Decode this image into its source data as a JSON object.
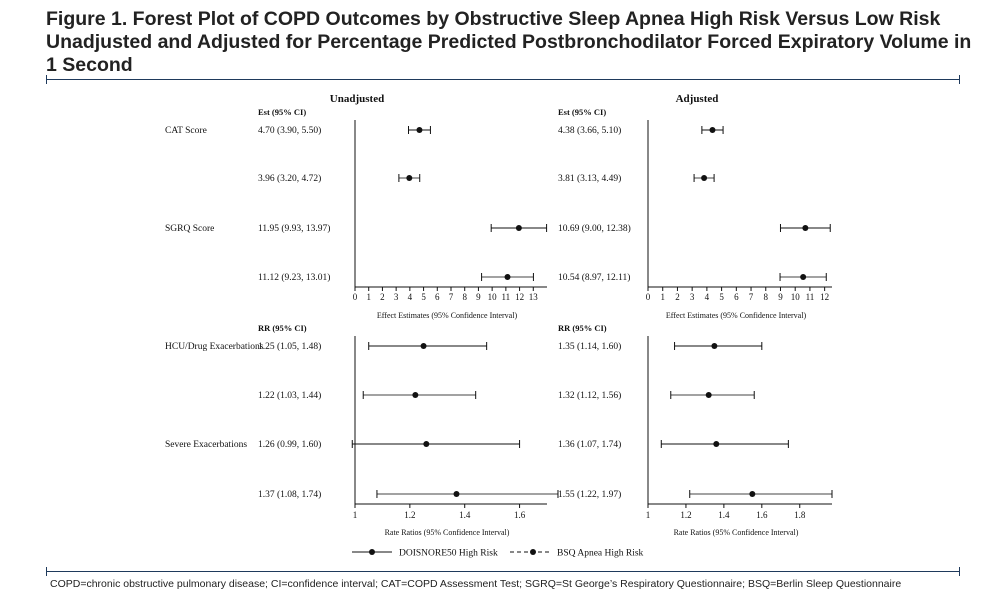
{
  "figure": {
    "title": "Figure 1. Forest Plot of COPD Outcomes by Obstructive Sleep Apnea High Risk Versus Low Risk Unadjusted and Adjusted for Percentage Predicted Postbronchodilator Forced Expiratory Volume in 1 Second",
    "footnote": "COPD=chronic obstructive pulmonary disease; CI=confidence interval; CAT=COPD Assessment Test; SGRQ=St George’s Respiratory Questionnaire; BSQ=Berlin Sleep Questionnaire"
  },
  "chart_data": {
    "type": "forest",
    "columns": [
      {
        "title": "Unadjusted"
      },
      {
        "title": "Adjusted"
      }
    ],
    "legend": [
      {
        "name": "DOISNORE50 High Risk",
        "line": "solid",
        "color": "#111111"
      },
      {
        "name": "BSQ Apnea High Risk",
        "line": "dashed",
        "color": "#111111"
      }
    ],
    "panels": [
      {
        "header": "Est (95% CI)",
        "xlabel": "Effect Estimates (95% Confidence Interval)",
        "outcomes": [
          {
            "name": "CAT Score",
            "rows": [
              {
                "unadjusted": {
                  "label": "4.70 (3.90, 5.50)",
                  "est": 4.7,
                  "lo": 3.9,
                  "hi": 5.5
                },
                "adjusted": {
                  "label": "4.38 (3.66, 5.10)",
                  "est": 4.38,
                  "lo": 3.66,
                  "hi": 5.1
                }
              },
              {
                "unadjusted": {
                  "label": "3.96 (3.20, 4.72)",
                  "est": 3.96,
                  "lo": 3.2,
                  "hi": 4.72
                },
                "adjusted": {
                  "label": "3.81 (3.13, 4.49)",
                  "est": 3.81,
                  "lo": 3.13,
                  "hi": 4.49
                }
              }
            ]
          },
          {
            "name": "SGRQ Score",
            "rows": [
              {
                "unadjusted": {
                  "label": "11.95 (9.93, 13.97)",
                  "est": 11.95,
                  "lo": 9.93,
                  "hi": 13.97
                },
                "adjusted": {
                  "label": "10.69 (9.00, 12.38)",
                  "est": 10.69,
                  "lo": 9.0,
                  "hi": 12.38
                }
              },
              {
                "unadjusted": {
                  "label": "11.12 (9.23, 13.01)",
                  "est": 11.12,
                  "lo": 9.23,
                  "hi": 13.01
                },
                "adjusted": {
                  "label": "10.54 (8.97, 12.11)",
                  "est": 10.54,
                  "lo": 8.97,
                  "hi": 12.11
                }
              }
            ]
          }
        ],
        "axes": {
          "unadjusted": {
            "xlim": [
              0,
              14
            ],
            "ticks": [
              0,
              1,
              2,
              3,
              4,
              5,
              6,
              7,
              8,
              9,
              10,
              11,
              12,
              13
            ],
            "tick_labels": [
              "0",
              "1",
              "2",
              "3",
              "4",
              "5",
              "6",
              "7",
              "8",
              "9",
              "10",
              "11",
              "12",
              "13"
            ]
          },
          "adjusted": {
            "xlim": [
              0,
              12.5
            ],
            "ticks": [
              0,
              1,
              2,
              3,
              4,
              5,
              6,
              7,
              8,
              9,
              10,
              11,
              12
            ],
            "tick_labels": [
              "0",
              "1",
              "2",
              "3",
              "4",
              "5",
              "6",
              "7",
              "8",
              "9",
              "10",
              "11",
              "12"
            ]
          }
        }
      },
      {
        "header": "RR (95% CI)",
        "xlabel": "Rate Ratios (95% Confidence Interval)",
        "outcomes": [
          {
            "name": "HCU/Drug Exacerbations",
            "rows": [
              {
                "unadjusted": {
                  "label": "1.25 (1.05, 1.48)",
                  "est": 1.25,
                  "lo": 1.05,
                  "hi": 1.48
                },
                "adjusted": {
                  "label": "1.35 (1.14, 1.60)",
                  "est": 1.35,
                  "lo": 1.14,
                  "hi": 1.6
                }
              },
              {
                "unadjusted": {
                  "label": "1.22 (1.03, 1.44)",
                  "est": 1.22,
                  "lo": 1.03,
                  "hi": 1.44
                },
                "adjusted": {
                  "label": "1.32 (1.12, 1.56)",
                  "est": 1.32,
                  "lo": 1.12,
                  "hi": 1.56
                }
              }
            ]
          },
          {
            "name": "Severe Exacerbations",
            "rows": [
              {
                "unadjusted": {
                  "label": "1.26 (0.99, 1.60)",
                  "est": 1.26,
                  "lo": 0.99,
                  "hi": 1.6
                },
                "adjusted": {
                  "label": "1.36 (1.07, 1.74)",
                  "est": 1.36,
                  "lo": 1.07,
                  "hi": 1.74
                }
              },
              {
                "unadjusted": {
                  "label": "1.37 (1.08, 1.74)",
                  "est": 1.37,
                  "lo": 1.08,
                  "hi": 1.74
                },
                "adjusted": {
                  "label": "1.55 (1.22, 1.97)",
                  "est": 1.55,
                  "lo": 1.22,
                  "hi": 1.97
                }
              }
            ]
          }
        ],
        "axes": {
          "unadjusted": {
            "xlim": [
              1,
              1.7
            ],
            "ticks": [
              1,
              1.2,
              1.4,
              1.6
            ],
            "tick_labels": [
              "1",
              "1.2",
              "1.4",
              "1.6"
            ]
          },
          "adjusted": {
            "xlim": [
              1,
              1.97
            ],
            "ticks": [
              1,
              1.2,
              1.4,
              1.6,
              1.8
            ],
            "tick_labels": [
              "1",
              "1.2",
              "1.4",
              "1.6",
              "1.8"
            ]
          }
        }
      }
    ]
  }
}
